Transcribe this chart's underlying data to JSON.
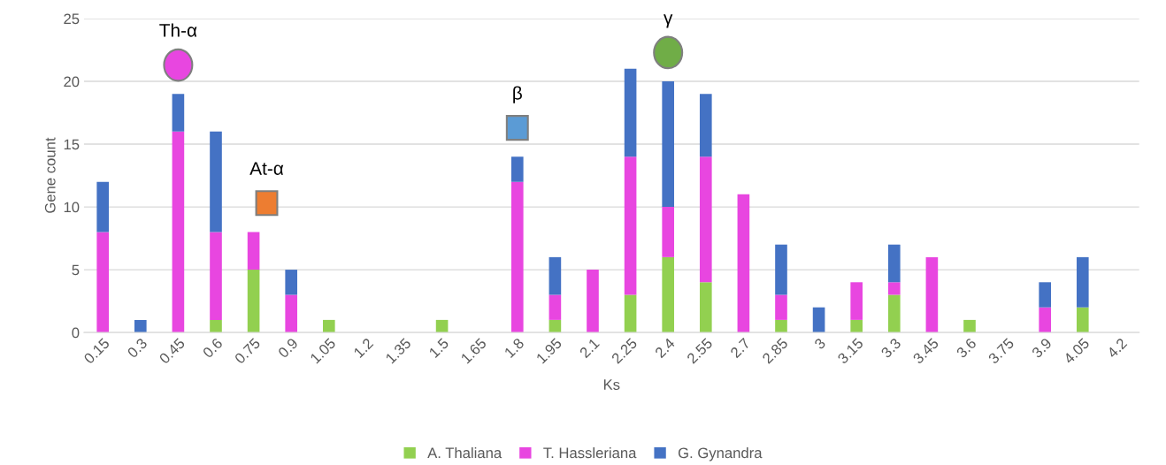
{
  "chart_data": {
    "type": "bar",
    "stacked": true,
    "xlabel": "Ks",
    "ylabel": "Gene count",
    "categories": [
      "0.15",
      "0.3",
      "0.45",
      "0.6",
      "0.75",
      "0.9",
      "1.05",
      "1.2",
      "1.35",
      "1.5",
      "1.65",
      "1.8",
      "1.95",
      "2.1",
      "2.25",
      "2.4",
      "2.55",
      "2.7",
      "2.85",
      "3",
      "3.15",
      "3.3",
      "3.45",
      "3.6",
      "3.75",
      "3.9",
      "4.05",
      "4.2"
    ],
    "series": [
      {
        "name": "A. Thaliana",
        "color": "#92d050",
        "values": [
          0,
          0,
          0,
          1,
          5,
          0,
          1,
          0,
          0,
          1,
          0,
          0,
          1,
          0,
          3,
          6,
          4,
          0,
          1,
          0,
          1,
          3,
          0,
          1,
          0,
          0,
          2,
          0
        ]
      },
      {
        "name": "T. Hassleriana",
        "color": "#e846e0",
        "values": [
          8,
          0,
          16,
          7,
          3,
          3,
          0,
          0,
          0,
          0,
          0,
          12,
          2,
          5,
          11,
          4,
          10,
          11,
          2,
          0,
          3,
          1,
          6,
          0,
          0,
          2,
          0,
          0
        ]
      },
      {
        "name": "G. Gynandra",
        "color": "#4472c4",
        "values": [
          4,
          1,
          3,
          8,
          0,
          2,
          0,
          0,
          0,
          0,
          0,
          2,
          3,
          0,
          7,
          10,
          5,
          0,
          4,
          2,
          0,
          3,
          0,
          0,
          0,
          2,
          4,
          0
        ]
      }
    ],
    "ylim": [
      0,
      25
    ],
    "yticks": [
      0,
      5,
      10,
      15,
      20,
      25
    ],
    "grid": "y",
    "legend": "bottom",
    "annotations": [
      "Th-α",
      "At-α",
      "β",
      "γ"
    ]
  }
}
